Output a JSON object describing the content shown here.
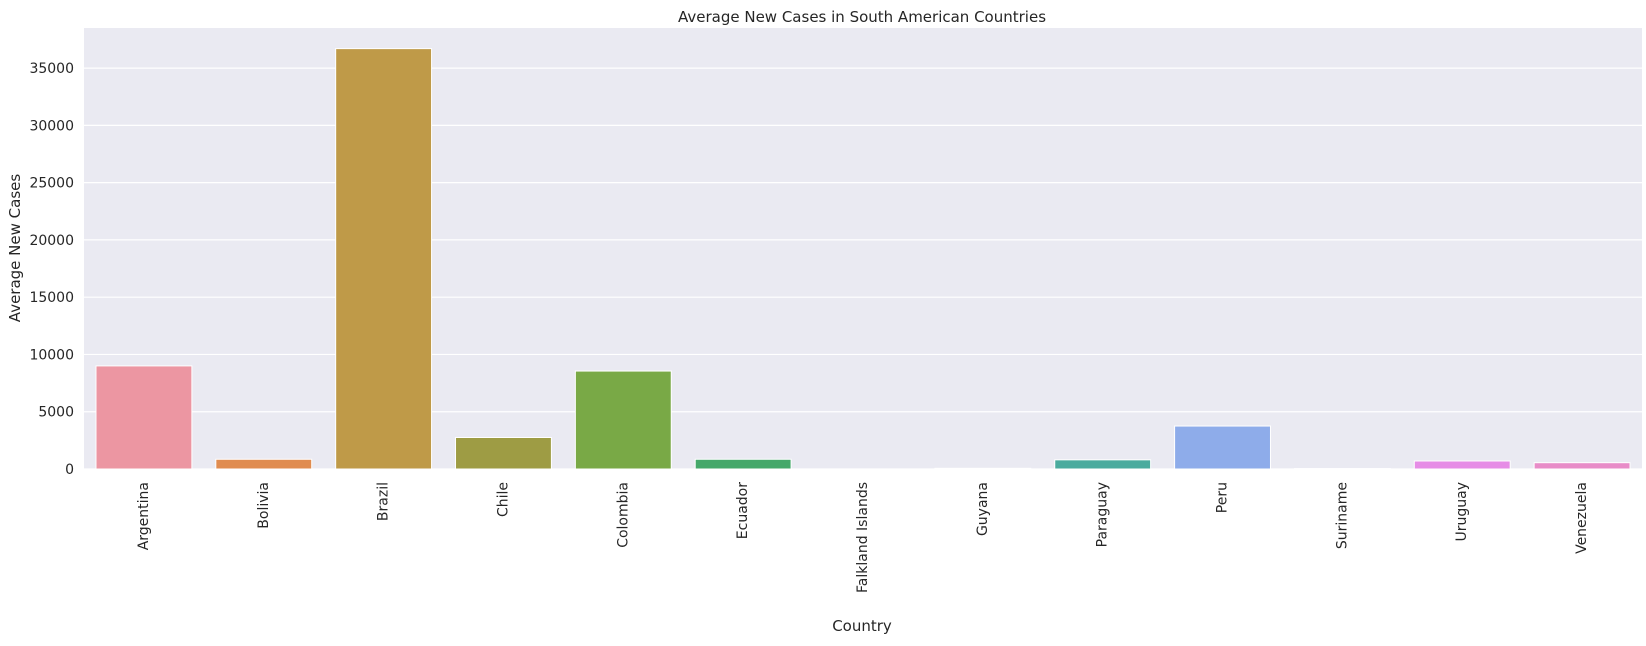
{
  "chart_data": {
    "type": "bar",
    "title": "Average New Cases in South American Countries",
    "xlabel": "Country",
    "ylabel": "Average New Cases",
    "categories": [
      "Argentina",
      "Bolivia",
      "Brazil",
      "Chile",
      "Colombia",
      "Ecuador",
      "Falkland Islands",
      "Guyana",
      "Paraguay",
      "Peru",
      "Suriname",
      "Uruguay",
      "Venezuela"
    ],
    "values": [
      9000,
      850,
      36700,
      2750,
      8550,
      850,
      2,
      60,
      800,
      3750,
      40,
      700,
      550
    ],
    "colors": [
      "#ec96a2",
      "#e08c50",
      "#bf9a48",
      "#9e9c44",
      "#79a946",
      "#45a86a",
      "#4aab90",
      "#4aab9e",
      "#4aab9e",
      "#8eacea",
      "#b49ae6",
      "#e68de6",
      "#e88cc8"
    ],
    "ylim": [
      0,
      38500
    ],
    "yticks": [
      0,
      5000,
      10000,
      15000,
      20000,
      25000,
      30000,
      35000
    ],
    "grid": true,
    "background": "#eaeaf2"
  }
}
